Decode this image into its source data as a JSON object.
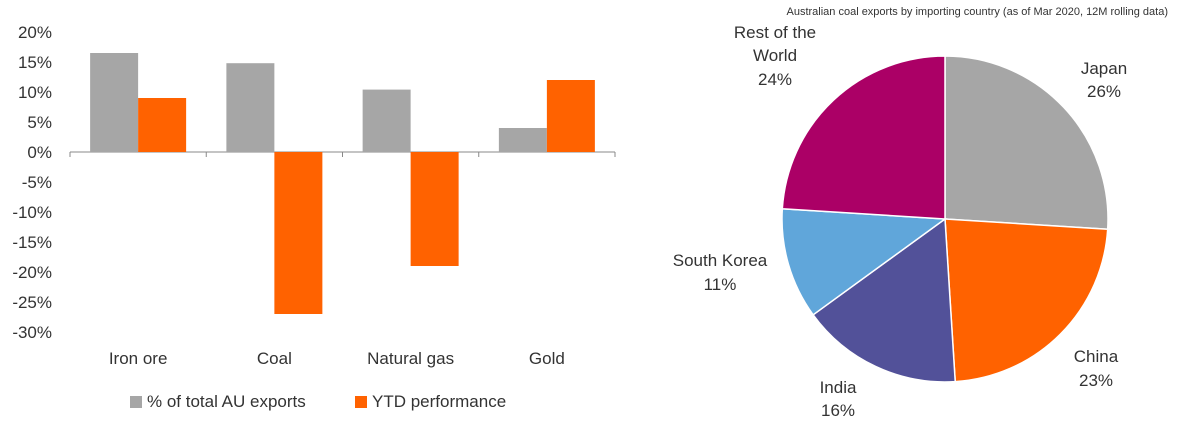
{
  "chart_data": [
    {
      "type": "bar",
      "categories": [
        "Iron ore",
        "Coal",
        "Natural gas",
        "Gold"
      ],
      "series": [
        {
          "name": "% of total AU exports",
          "values": [
            16.5,
            14.8,
            10.4,
            4.0
          ],
          "color": "#a6a6a6"
        },
        {
          "name": "YTD performance",
          "values": [
            9.0,
            -27.0,
            -19.0,
            12.0
          ],
          "color": "#ff6200"
        }
      ],
      "ylim": [
        -30,
        20
      ],
      "yticks": [
        20,
        15,
        10,
        5,
        0,
        -5,
        -10,
        -15,
        -20,
        -25,
        -30
      ],
      "ytick_labels": [
        "20%",
        "15%",
        "10%",
        "5%",
        "0%",
        "-5%",
        "-10%",
        "-15%",
        "-20%",
        "-25%",
        "-30%"
      ],
      "grid": false,
      "legend_position": "bottom"
    },
    {
      "type": "pie",
      "title": "Australian coal exports by importing country (as of Mar 2020, 12M rolling data)",
      "slices": [
        {
          "label": "Japan",
          "value": 26,
          "value_label": "26%",
          "color": "#a6a6a6"
        },
        {
          "label": "China",
          "value": 23,
          "value_label": "23%",
          "color": "#ff6200"
        },
        {
          "label": "India",
          "value": 16,
          "value_label": "16%",
          "color": "#525199"
        },
        {
          "label": "South Korea",
          "value": 11,
          "value_label": "11%",
          "color": "#60a6da"
        },
        {
          "label": "Rest of the World",
          "value": 24,
          "value_label": "24%",
          "color": "#ab0066"
        }
      ]
    }
  ]
}
